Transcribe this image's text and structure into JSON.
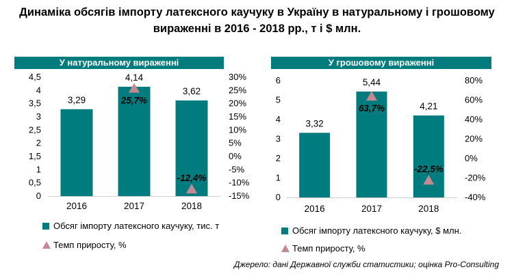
{
  "title": "Динаміка обсягів імпорту латексного каучуку в Україну в натуральному і грошовому вираженні в 2016 - 2018 рр., т і $ млн.",
  "source": "Джерело: дані Державної служби статистики; оцінка Pro-Consulting",
  "colors": {
    "bar": "#007C7E",
    "marker": "#C48A94",
    "header": "#007C7E"
  },
  "chart_data": [
    {
      "type": "bar",
      "header": "У натуральному вираженні",
      "categories": [
        "2016",
        "2017",
        "2018"
      ],
      "values": [
        3.29,
        4.14,
        3.62
      ],
      "value_labels": [
        "3,29",
        "4,14",
        "3,62"
      ],
      "growth": [
        null,
        25.7,
        -12.4
      ],
      "growth_labels": [
        "",
        "25,7%",
        "-12,4%"
      ],
      "ylim": [
        0,
        4.5
      ],
      "yticks": [
        "0",
        "0,5",
        "1",
        "1,5",
        "2",
        "2,5",
        "3",
        "3,5",
        "4",
        "4,5"
      ],
      "y2lim": [
        -15,
        30
      ],
      "y2ticks": [
        "-15%",
        "-10%",
        "-5%",
        "0%",
        "5%",
        "10%",
        "15%",
        "20%",
        "25%",
        "30%"
      ],
      "legend": [
        "Обсяг імпорту латексного каучуку, тис. т",
        "Темп приросту, %"
      ]
    },
    {
      "type": "bar",
      "header": "У грошовому вираженні",
      "categories": [
        "2016",
        "2017",
        "2018"
      ],
      "values": [
        3.32,
        5.44,
        4.21
      ],
      "value_labels": [
        "3,32",
        "5,44",
        "4,21"
      ],
      "growth": [
        null,
        63.7,
        -22.5
      ],
      "growth_labels": [
        "",
        "63,7%",
        "-22,5%"
      ],
      "ylim": [
        0,
        6
      ],
      "yticks": [
        "0",
        "1",
        "2",
        "3",
        "4",
        "5",
        "6"
      ],
      "y2lim": [
        -40,
        80
      ],
      "y2ticks": [
        "-40%",
        "-20%",
        "0%",
        "20%",
        "40%",
        "60%",
        "80%"
      ],
      "legend": [
        "Обсяг імпорту латексного каучуку, $ млн.",
        "Темп приросту, %"
      ]
    }
  ]
}
